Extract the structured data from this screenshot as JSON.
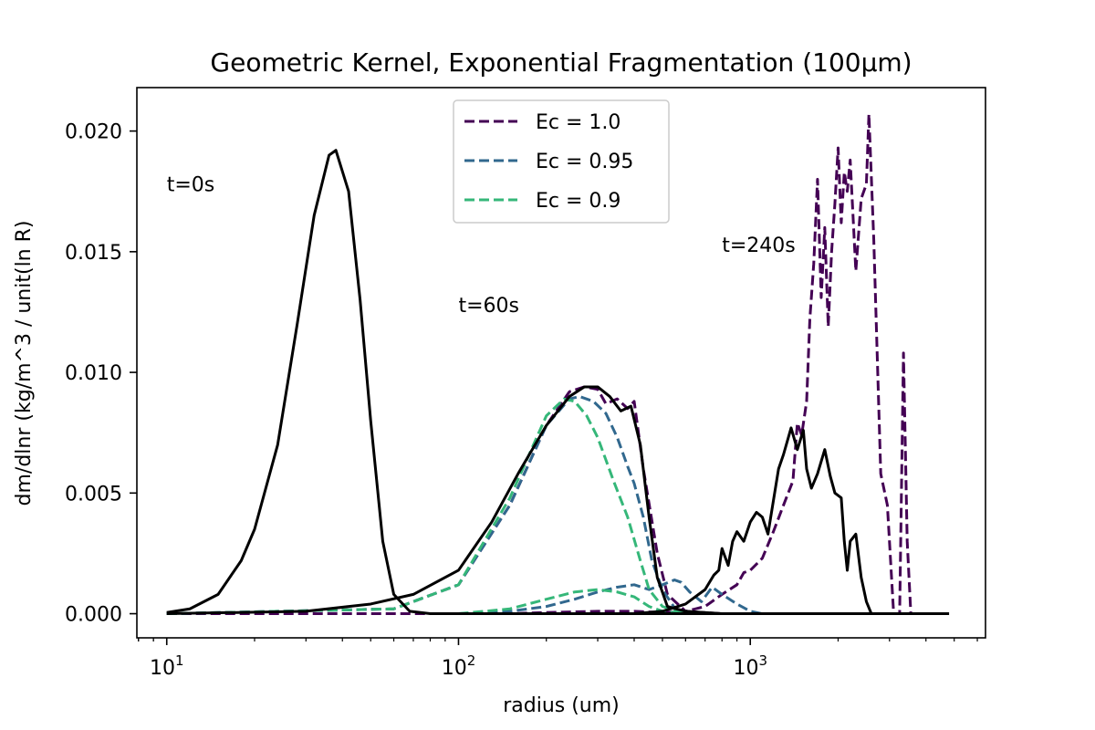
{
  "chart_data": {
    "type": "line",
    "title": "Geometric Kernel, Exponential Fragmentation (100μm)",
    "xlabel": "radius (um)",
    "ylabel": "dm/dlnr (kg/m^3 / unit(ln R)",
    "xscale": "log",
    "xlim": [
      7.9,
      6400
    ],
    "ylim": [
      -0.001,
      0.0218
    ],
    "x_ticks": [
      {
        "value": 10,
        "base": "10",
        "exp": "1"
      },
      {
        "value": 100,
        "base": "10",
        "exp": "2"
      },
      {
        "value": 1000,
        "base": "10",
        "exp": "3"
      }
    ],
    "y_ticks": [
      {
        "value": 0.0,
        "label": "0.000"
      },
      {
        "value": 0.005,
        "label": "0.005"
      },
      {
        "value": 0.01,
        "label": "0.010"
      },
      {
        "value": 0.015,
        "label": "0.015"
      },
      {
        "value": 0.02,
        "label": "0.020"
      }
    ],
    "grid": false,
    "legend_position": "top-center",
    "annotations": [
      {
        "text": "t=0s",
        "x": 10,
        "y": 0.0175
      },
      {
        "text": "t=60s",
        "x": 100,
        "y": 0.0125
      },
      {
        "text": "t=240s",
        "x": 800,
        "y": 0.015
      }
    ],
    "series": [
      {
        "name": "Ec = 1.0",
        "color": "#440154",
        "dash": "dashed",
        "in_legend": true,
        "points": [
          [
            10,
            0
          ],
          [
            100,
            0
          ],
          [
            150,
            0
          ],
          [
            200,
            5e-05
          ],
          [
            300,
            0.0001
          ],
          [
            400,
            0.0001
          ],
          [
            500,
            5e-05
          ],
          [
            600,
            0.0001
          ],
          [
            700,
            0.0003
          ],
          [
            800,
            0.0008
          ],
          [
            900,
            0.0012
          ],
          [
            950,
            0.0017
          ],
          [
            1000,
            0.0018
          ],
          [
            1100,
            0.0023
          ],
          [
            1200,
            0.0034
          ],
          [
            1300,
            0.0045
          ],
          [
            1400,
            0.0055
          ],
          [
            1450,
            0.0079
          ],
          [
            1500,
            0.0074
          ],
          [
            1560,
            0.0088
          ],
          [
            1600,
            0.0122
          ],
          [
            1650,
            0.0145
          ],
          [
            1700,
            0.018
          ],
          [
            1750,
            0.0131
          ],
          [
            1800,
            0.016
          ],
          [
            1850,
            0.0119
          ],
          [
            1900,
            0.015
          ],
          [
            1950,
            0.017
          ],
          [
            2000,
            0.0193
          ],
          [
            2050,
            0.0162
          ],
          [
            2100,
            0.0183
          ],
          [
            2150,
            0.0175
          ],
          [
            2200,
            0.0188
          ],
          [
            2300,
            0.0142
          ],
          [
            2400,
            0.0172
          ],
          [
            2500,
            0.0178
          ],
          [
            2550,
            0.0207
          ],
          [
            2650,
            0.0155
          ],
          [
            2800,
            0.0058
          ],
          [
            2950,
            0.0045
          ],
          [
            3100,
            0.0
          ],
          [
            3250,
            0.0
          ],
          [
            3350,
            0.0108
          ],
          [
            3450,
            0.003
          ],
          [
            3550,
            0.0
          ],
          [
            4800,
            0
          ]
        ]
      },
      {
        "name": "Ec = 1.0",
        "color": "#440154",
        "dash": "dashed",
        "in_legend": false,
        "points": [
          [
            10,
            0
          ],
          [
            60,
            0.0002
          ],
          [
            100,
            0.0012
          ],
          [
            150,
            0.0045
          ],
          [
            200,
            0.0078
          ],
          [
            240,
            0.0092
          ],
          [
            270,
            0.0094
          ],
          [
            300,
            0.0093
          ],
          [
            320,
            0.0087
          ],
          [
            350,
            0.0089
          ],
          [
            380,
            0.0085
          ],
          [
            400,
            0.0088
          ],
          [
            430,
            0.006
          ],
          [
            480,
            0.0025
          ],
          [
            520,
            0.0008
          ],
          [
            600,
            0.0001
          ],
          [
            800,
            0
          ]
        ]
      },
      {
        "name": "Ec = 0.95",
        "color": "#31688e",
        "dash": "dashed",
        "in_legend": true,
        "points": [
          [
            10,
            0
          ],
          [
            60,
            0.0002
          ],
          [
            100,
            0.0012
          ],
          [
            150,
            0.0045
          ],
          [
            200,
            0.0078
          ],
          [
            240,
            0.0089
          ],
          [
            260,
            0.009
          ],
          [
            290,
            0.0088
          ],
          [
            320,
            0.0083
          ],
          [
            350,
            0.0073
          ],
          [
            380,
            0.0061
          ],
          [
            400,
            0.0054
          ],
          [
            430,
            0.004
          ],
          [
            460,
            0.0022
          ],
          [
            500,
            0.001
          ],
          [
            560,
            0.0001
          ],
          [
            700,
            0
          ]
        ]
      },
      {
        "name": "Ec = 0.95",
        "color": "#31688e",
        "dash": "dashed",
        "in_legend": false,
        "points": [
          [
            100,
            0
          ],
          [
            150,
            0.0001
          ],
          [
            200,
            0.0003
          ],
          [
            250,
            0.0006
          ],
          [
            300,
            0.0009
          ],
          [
            350,
            0.0011
          ],
          [
            400,
            0.0012
          ],
          [
            450,
            0.001
          ],
          [
            500,
            0.0012
          ],
          [
            550,
            0.0014
          ],
          [
            580,
            0.0013
          ],
          [
            620,
            0.0009
          ],
          [
            680,
            0.0005
          ],
          [
            740,
            0.0011
          ],
          [
            800,
            0.0008
          ],
          [
            900,
            0.0004
          ],
          [
            1000,
            0.0001
          ],
          [
            1100,
            0
          ]
        ]
      },
      {
        "name": "Ec = 0.9",
        "color": "#35b779",
        "dash": "dashed",
        "in_legend": true,
        "points": [
          [
            10,
            0
          ],
          [
            60,
            0.0002
          ],
          [
            100,
            0.0012
          ],
          [
            150,
            0.0048
          ],
          [
            200,
            0.0082
          ],
          [
            230,
            0.0089
          ],
          [
            250,
            0.0088
          ],
          [
            275,
            0.0082
          ],
          [
            300,
            0.0073
          ],
          [
            340,
            0.0055
          ],
          [
            380,
            0.004
          ],
          [
            420,
            0.0022
          ],
          [
            450,
            0.001
          ],
          [
            500,
            0.0003
          ],
          [
            600,
            0
          ]
        ]
      },
      {
        "name": "Ec = 0.9",
        "color": "#35b779",
        "dash": "dashed",
        "in_legend": false,
        "points": [
          [
            100,
            0
          ],
          [
            150,
            0.0002
          ],
          [
            200,
            0.0006
          ],
          [
            250,
            0.0009
          ],
          [
            300,
            0.001
          ],
          [
            350,
            0.0009
          ],
          [
            400,
            0.0007
          ],
          [
            450,
            0.0003
          ],
          [
            500,
            0.0001
          ],
          [
            600,
            0
          ]
        ]
      },
      {
        "name": "",
        "color": "#000000",
        "dash": "solid",
        "in_legend": false,
        "points": [
          [
            10,
            5e-05
          ],
          [
            12,
            0.0002
          ],
          [
            15,
            0.0008
          ],
          [
            18,
            0.0022
          ],
          [
            20,
            0.0035
          ],
          [
            24,
            0.007
          ],
          [
            28,
            0.012
          ],
          [
            32,
            0.0165
          ],
          [
            36,
            0.019
          ],
          [
            38,
            0.0192
          ],
          [
            42,
            0.0175
          ],
          [
            46,
            0.013
          ],
          [
            50,
            0.008
          ],
          [
            55,
            0.003
          ],
          [
            60,
            0.0008
          ],
          [
            68,
            0.0001
          ],
          [
            80,
            0
          ],
          [
            4800,
            0
          ]
        ]
      },
      {
        "name": "",
        "color": "#000000",
        "dash": "solid",
        "in_legend": false,
        "points": [
          [
            10,
            0
          ],
          [
            30,
            0.0001
          ],
          [
            50,
            0.0004
          ],
          [
            70,
            0.0008
          ],
          [
            100,
            0.0018
          ],
          [
            130,
            0.0038
          ],
          [
            160,
            0.0058
          ],
          [
            200,
            0.0078
          ],
          [
            240,
            0.009
          ],
          [
            270,
            0.0094
          ],
          [
            300,
            0.0094
          ],
          [
            330,
            0.009
          ],
          [
            360,
            0.0084
          ],
          [
            390,
            0.0086
          ],
          [
            420,
            0.007
          ],
          [
            450,
            0.004
          ],
          [
            480,
            0.0015
          ],
          [
            520,
            0.0003
          ],
          [
            600,
            0.0001
          ],
          [
            800,
            0
          ]
        ]
      },
      {
        "name": "",
        "color": "#000000",
        "dash": "solid",
        "in_legend": false,
        "points": [
          [
            400,
            0
          ],
          [
            500,
            0.0001
          ],
          [
            600,
            0.0004
          ],
          [
            700,
            0.001
          ],
          [
            750,
            0.0016
          ],
          [
            780,
            0.0018
          ],
          [
            800,
            0.0027
          ],
          [
            840,
            0.002
          ],
          [
            870,
            0.003
          ],
          [
            900,
            0.0034
          ],
          [
            950,
            0.003
          ],
          [
            1000,
            0.0038
          ],
          [
            1050,
            0.0042
          ],
          [
            1100,
            0.004
          ],
          [
            1150,
            0.0033
          ],
          [
            1250,
            0.006
          ],
          [
            1300,
            0.0066
          ],
          [
            1380,
            0.0077
          ],
          [
            1450,
            0.0068
          ],
          [
            1520,
            0.0076
          ],
          [
            1560,
            0.006
          ],
          [
            1620,
            0.0052
          ],
          [
            1700,
            0.0058
          ],
          [
            1800,
            0.0068
          ],
          [
            1880,
            0.0057
          ],
          [
            1950,
            0.005
          ],
          [
            2050,
            0.0048
          ],
          [
            2100,
            0.003
          ],
          [
            2150,
            0.0018
          ],
          [
            2200,
            0.003
          ],
          [
            2300,
            0.0033
          ],
          [
            2400,
            0.0015
          ],
          [
            2500,
            0.0005
          ],
          [
            2600,
            0.0
          ],
          [
            4800,
            0
          ]
        ]
      }
    ]
  }
}
